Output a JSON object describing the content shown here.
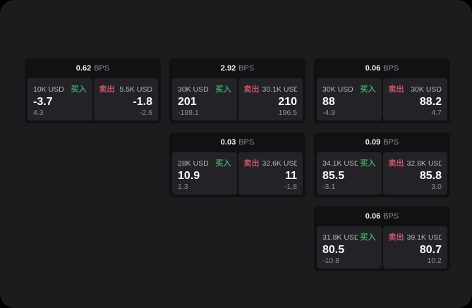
{
  "labels": {
    "buy": "买入",
    "sell": "卖出",
    "bps": "BPS"
  },
  "colors": {
    "surface_bg": "#1c1c1e",
    "card_bg": "#111113",
    "panel_bg": "#232327",
    "buy_accent": "#3fa56a",
    "sell_accent": "#c85268",
    "price_text": "#fafafa",
    "muted_text": "#8e8e93"
  },
  "cards": [
    {
      "row": 0,
      "col": 0,
      "bps": "0.62",
      "buy_amount": "10K USD",
      "buy_price": "-3.7",
      "buy_delta": "4.3",
      "sell_amount": "5.5K USD",
      "sell_price": "-1.8",
      "sell_delta": "-2.6"
    },
    {
      "row": 0,
      "col": 1,
      "bps": "2.92",
      "buy_amount": "30K USD",
      "buy_price": "201",
      "buy_delta": "-188.1",
      "sell_amount": "30.1K USD",
      "sell_price": "210",
      "sell_delta": "196.5"
    },
    {
      "row": 0,
      "col": 2,
      "bps": "0.06",
      "buy_amount": "30K USD",
      "buy_price": "88",
      "buy_delta": "-4.9",
      "sell_amount": "30K USD",
      "sell_price": "88.2",
      "sell_delta": "4.7"
    },
    {
      "row": 1,
      "col": 1,
      "bps": "0.03",
      "buy_amount": "28K USD",
      "buy_price": "10.9",
      "buy_delta": "1.3",
      "sell_amount": "32.6K USD",
      "sell_price": "11",
      "sell_delta": "-1.8"
    },
    {
      "row": 1,
      "col": 2,
      "bps": "0.09",
      "buy_amount": "34.1K USD",
      "buy_price": "85.5",
      "buy_delta": "-3.1",
      "sell_amount": "32.8K USD",
      "sell_price": "85.8",
      "sell_delta": "3.0"
    },
    {
      "row": 2,
      "col": 2,
      "bps": "0.06",
      "buy_amount": "31.8K USD",
      "buy_price": "80.5",
      "buy_delta": "-10.8",
      "sell_amount": "39.1K USD",
      "sell_price": "80.7",
      "sell_delta": "10.2"
    }
  ]
}
